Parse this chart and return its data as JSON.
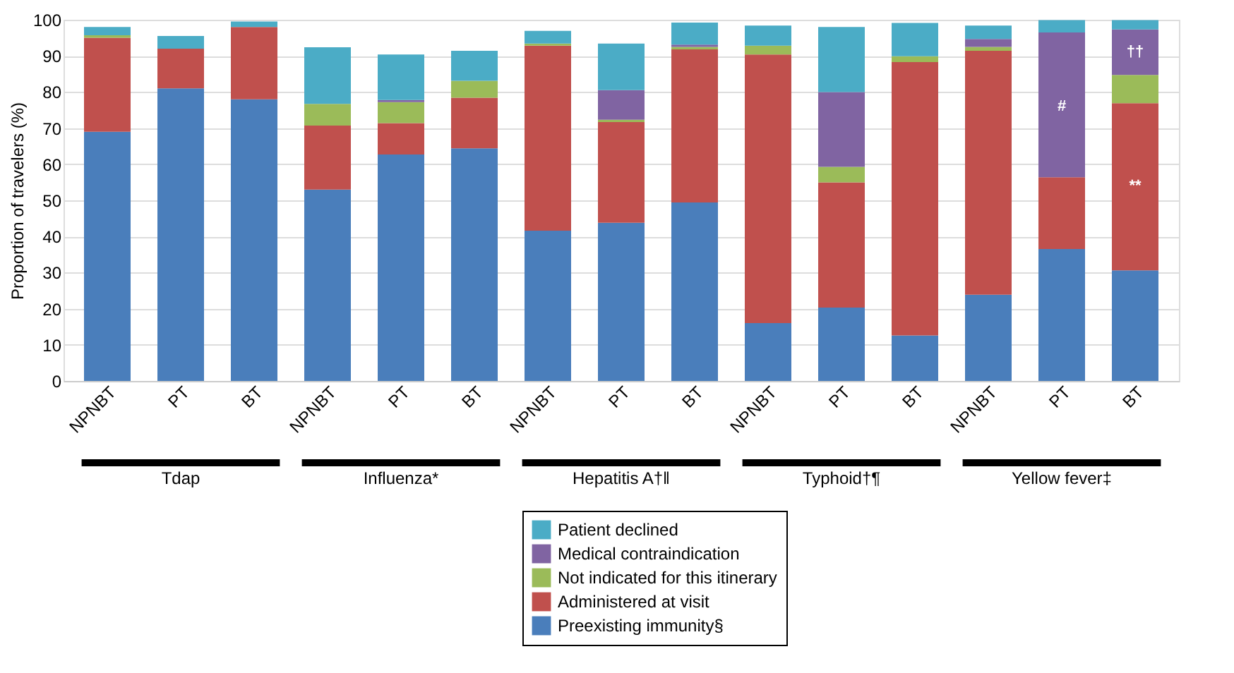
{
  "chart_data": {
    "type": "bar",
    "stacked": true,
    "ylabel": "Proportion of travelers (%)",
    "categories": [
      "NPNBT",
      "PT",
      "BT",
      "NPNBT",
      "PT",
      "BT",
      "NPNBT",
      "PT",
      "BT",
      "NPNBT",
      "PT",
      "BT",
      "NPNBT",
      "PT",
      "BT"
    ],
    "series": [
      {
        "name": "Preexisting immunity§",
        "color": "#4a7ebb",
        "values": [
          69,
          81,
          78,
          53,
          62.7,
          64.4,
          41.6,
          43.8,
          49.4,
          16,
          20.3,
          12.6,
          23.9,
          36.5,
          30.6
        ]
      },
      {
        "name": "Administered at visit",
        "color": "#c0504d",
        "values": [
          26,
          11,
          20,
          17.7,
          8.7,
          14,
          51.2,
          27.9,
          42.4,
          74.4,
          34.7,
          75.7,
          67.5,
          19.9,
          46.3
        ]
      },
      {
        "name": "Not indicated for this itinerary",
        "color": "#9bbb59",
        "values": [
          0.7,
          0,
          0,
          6,
          5.8,
          4.7,
          0.6,
          0.6,
          0.7,
          2.4,
          4.3,
          1.6,
          1.1,
          0,
          7.8
        ]
      },
      {
        "name": "Medical contraindication",
        "color": "#8064a2",
        "values": [
          0,
          0,
          0,
          0,
          0.6,
          0,
          0,
          8.2,
          0.6,
          0,
          20.7,
          0,
          2.2,
          40.1,
          12.6
        ]
      },
      {
        "name": "Patient declined",
        "color": "#4bacc6",
        "values": [
          2.3,
          3.5,
          1.5,
          15.7,
          12.6,
          8.3,
          3.5,
          12.9,
          6.1,
          5.6,
          18,
          9.2,
          3.7,
          3.4,
          2.6
        ]
      }
    ],
    "annotations": [
      "Tdap",
      "Influenza*",
      "Hepatitis A†‖",
      "Typhoid†¶",
      "Yellow fever‡",
      "#",
      "**",
      "††"
    ],
    "ylim": [
      0,
      100
    ],
    "yticks": [
      0,
      10,
      20,
      30,
      40,
      50,
      60,
      70,
      80,
      90,
      100
    ],
    "grid": "y",
    "legend": "bottom"
  }
}
